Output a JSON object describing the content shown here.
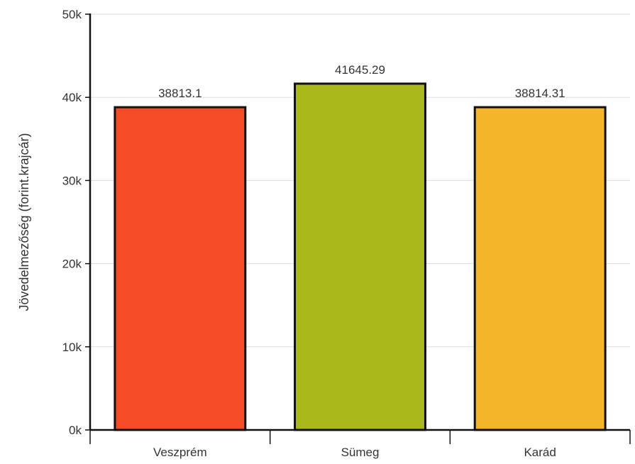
{
  "chart_data": {
    "type": "bar",
    "title": "",
    "xlabel": "",
    "ylabel": "Jövedelmezőség (forint.krajcár)",
    "categories": [
      "Veszprém",
      "Sümeg",
      "Karád"
    ],
    "values": [
      38813.1,
      41645.29,
      38814.31
    ],
    "value_labels": [
      "38813.1",
      "41645.29",
      "38814.31"
    ],
    "colors": [
      "#f54b26",
      "#a9b81c",
      "#f5b52a"
    ],
    "ylim": [
      0,
      50000
    ],
    "yticks": [
      0,
      10000,
      20000,
      30000,
      40000,
      50000
    ],
    "ytick_labels": [
      "0k",
      "10k",
      "20k",
      "30k",
      "40k",
      "50k"
    ],
    "grid": true,
    "legend": "none"
  }
}
